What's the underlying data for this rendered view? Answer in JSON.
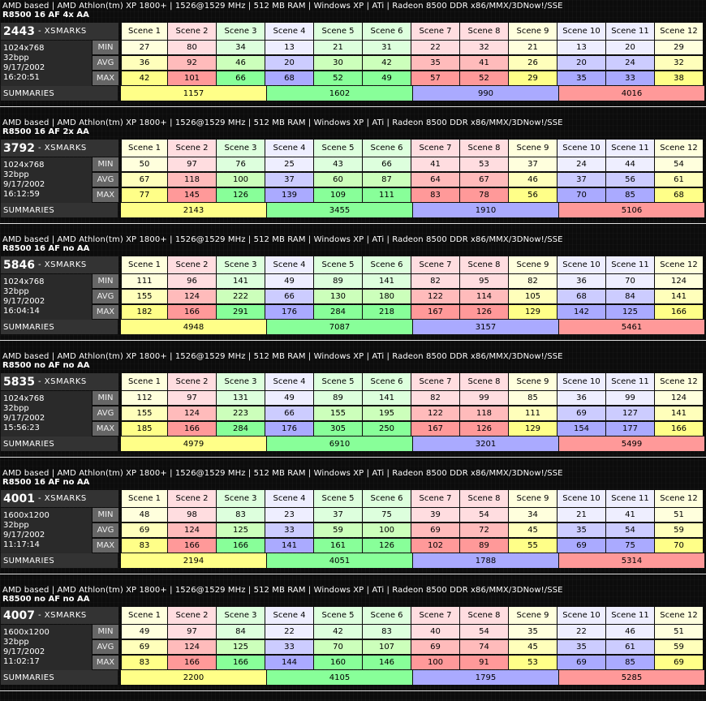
{
  "system": "AMD based | AMD Athlon(tm) XP 1800+ | 1526@1529 MHz | 512 MB RAM | Windows XP | ATi | Radeon 8500 DDR x86/MMX/3DNow!/SSE",
  "score_suffix": "- XSMARKS",
  "row_labels": [
    "MIN",
    "AVG",
    "MAX"
  ],
  "summaries_label": "SUMMARIES",
  "scenes": [
    "Scene 1",
    "Scene 2",
    "Scene 3",
    "Scene 4",
    "Scene 5",
    "Scene 6",
    "Scene 7",
    "Scene 8",
    "Scene 9",
    "Scene 10",
    "Scene 11",
    "Scene 12"
  ],
  "scene_color_groups": [
    "yellow",
    "red",
    "green",
    "blue",
    "green",
    "green",
    "red",
    "red",
    "yellow",
    "blue",
    "blue",
    "yellow"
  ],
  "summary_color_groups": [
    "yellow",
    "green",
    "blue",
    "red"
  ],
  "colors": {
    "yellow": {
      "light": "#ffffdd",
      "mid": "#ffffbb",
      "strong": "#ffff88"
    },
    "red": {
      "light": "#ffdde0",
      "mid": "#ffbbbb",
      "strong": "#ff9999"
    },
    "green": {
      "light": "#ddffdd",
      "mid": "#ccffbb",
      "strong": "#88ff99"
    },
    "blue": {
      "light": "#eeeeff",
      "mid": "#ccccff",
      "strong": "#aaaaff"
    }
  },
  "blocks": [
    {
      "config": "R8500 16 AF 4x AA",
      "score": "2443",
      "resolution": "1024x768",
      "depth": "32bpp",
      "date": "9/17/2002",
      "time": "16:20:51",
      "min": [
        27,
        80,
        34,
        13,
        21,
        31,
        22,
        32,
        21,
        13,
        20,
        29
      ],
      "avg": [
        36,
        92,
        46,
        20,
        30,
        42,
        35,
        41,
        26,
        20,
        24,
        32
      ],
      "max": [
        42,
        101,
        66,
        68,
        52,
        49,
        57,
        52,
        29,
        35,
        33,
        38
      ],
      "summaries": [
        1157,
        1602,
        990,
        4016
      ]
    },
    {
      "config": "R8500 16 AF 2x AA",
      "score": "3792",
      "resolution": "1024x768",
      "depth": "32bpp",
      "date": "9/17/2002",
      "time": "16:12:59",
      "min": [
        50,
        97,
        76,
        25,
        43,
        66,
        41,
        53,
        37,
        24,
        44,
        54
      ],
      "avg": [
        67,
        118,
        100,
        37,
        60,
        87,
        64,
        67,
        46,
        37,
        56,
        61
      ],
      "max": [
        77,
        145,
        126,
        139,
        109,
        111,
        83,
        78,
        56,
        70,
        85,
        68
      ],
      "summaries": [
        2143,
        3455,
        1910,
        5106
      ]
    },
    {
      "config": "R8500 16 AF no AA",
      "score": "5846",
      "resolution": "1024x768",
      "depth": "32bpp",
      "date": "9/17/2002",
      "time": "16:04:14",
      "min": [
        111,
        96,
        141,
        49,
        89,
        141,
        82,
        95,
        82,
        36,
        70,
        124
      ],
      "avg": [
        155,
        124,
        222,
        66,
        130,
        180,
        122,
        114,
        105,
        68,
        84,
        141
      ],
      "max": [
        182,
        166,
        291,
        176,
        284,
        218,
        167,
        126,
        129,
        142,
        125,
        166
      ],
      "summaries": [
        4948,
        7087,
        3157,
        5461
      ]
    },
    {
      "config": "R8500 no AF no AA",
      "score": "5835",
      "resolution": "1024x768",
      "depth": "32bpp",
      "date": "9/17/2002",
      "time": "15:56:23",
      "min": [
        112,
        97,
        131,
        49,
        89,
        141,
        82,
        99,
        85,
        36,
        99,
        124
      ],
      "avg": [
        155,
        124,
        223,
        66,
        155,
        195,
        122,
        118,
        111,
        69,
        127,
        141
      ],
      "max": [
        185,
        166,
        284,
        176,
        305,
        250,
        167,
        126,
        129,
        154,
        177,
        166
      ],
      "summaries": [
        4979,
        6910,
        3201,
        5499
      ]
    },
    {
      "config": "R8500 16 AF no AA",
      "score": "4001",
      "resolution": "1600x1200",
      "depth": "32bpp",
      "date": "9/17/2002",
      "time": "11:17:14",
      "min": [
        48,
        98,
        83,
        23,
        37,
        75,
        39,
        54,
        34,
        21,
        41,
        51
      ],
      "avg": [
        69,
        124,
        125,
        33,
        59,
        100,
        69,
        72,
        45,
        35,
        54,
        59
      ],
      "max": [
        83,
        166,
        166,
        141,
        161,
        126,
        102,
        89,
        55,
        69,
        75,
        70
      ],
      "summaries": [
        2194,
        4051,
        1788,
        5314
      ]
    },
    {
      "config": "R8500 no AF no AA",
      "score": "4007",
      "resolution": "1600x1200",
      "depth": "32bpp",
      "date": "9/17/2002",
      "time": "11:02:17",
      "min": [
        49,
        97,
        84,
        22,
        42,
        83,
        40,
        54,
        35,
        22,
        46,
        51
      ],
      "avg": [
        69,
        124,
        125,
        33,
        70,
        107,
        69,
        74,
        45,
        35,
        61,
        59
      ],
      "max": [
        83,
        166,
        166,
        144,
        160,
        146,
        100,
        91,
        53,
        69,
        85,
        69
      ],
      "summaries": [
        2200,
        4105,
        1795,
        5285
      ]
    }
  ]
}
